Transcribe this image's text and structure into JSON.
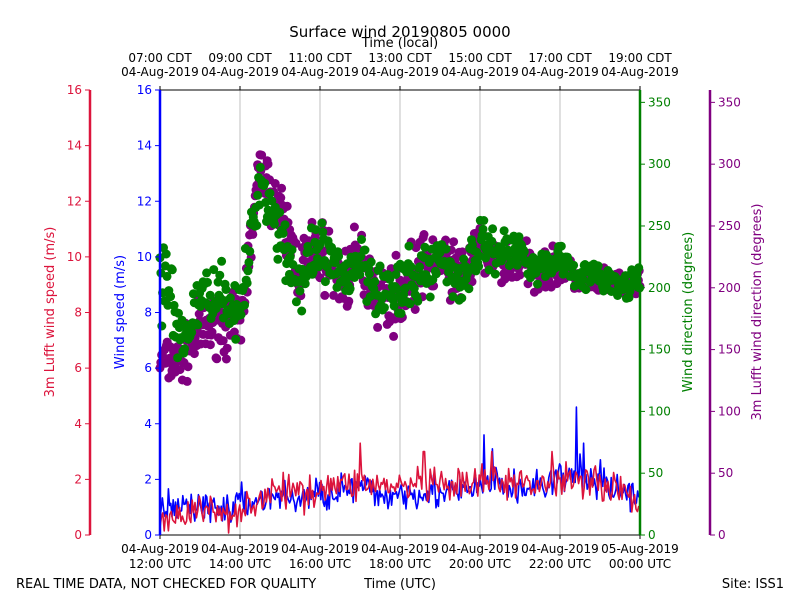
{
  "chart_data": {
    "type": "scatter",
    "title": "Surface wind 20190805 0000",
    "top_xlabel": "Time (local)",
    "xlabel": "Time (UTC)",
    "footer_left": "REAL TIME DATA, NOT CHECKED FOR QUALITY",
    "footer_right": "Site: ISS1",
    "x_range_hours_utc": [
      12.0,
      24.0
    ],
    "grid": "vertical",
    "bottom_ticks": [
      {
        "hour": 12,
        "line1": "04-Aug-2019",
        "line2": "12:00 UTC"
      },
      {
        "hour": 14,
        "line1": "04-Aug-2019",
        "line2": "14:00 UTC"
      },
      {
        "hour": 16,
        "line1": "04-Aug-2019",
        "line2": "16:00 UTC"
      },
      {
        "hour": 18,
        "line1": "04-Aug-2019",
        "line2": "18:00 UTC"
      },
      {
        "hour": 20,
        "line1": "04-Aug-2019",
        "line2": "20:00 UTC"
      },
      {
        "hour": 22,
        "line1": "04-Aug-2019",
        "line2": "22:00 UTC"
      },
      {
        "hour": 24,
        "line1": "05-Aug-2019",
        "line2": "00:00 UTC"
      }
    ],
    "top_ticks": [
      {
        "hour": 12,
        "line1": "07:00 CDT",
        "line2": "04-Aug-2019"
      },
      {
        "hour": 14,
        "line1": "09:00 CDT",
        "line2": "04-Aug-2019"
      },
      {
        "hour": 16,
        "line1": "11:00 CDT",
        "line2": "04-Aug-2019"
      },
      {
        "hour": 18,
        "line1": "13:00 CDT",
        "line2": "04-Aug-2019"
      },
      {
        "hour": 20,
        "line1": "15:00 CDT",
        "line2": "04-Aug-2019"
      },
      {
        "hour": 22,
        "line1": "17:00 CDT",
        "line2": "04-Aug-2019"
      },
      {
        "hour": 24,
        "line1": "19:00 CDT",
        "line2": "04-Aug-2019"
      }
    ],
    "axes": {
      "lufft_speed": {
        "label": "3m Lufft wind speed (m/s)",
        "color": "#dc143c",
        "range": [
          0,
          16
        ],
        "ticks": [
          0,
          2,
          4,
          6,
          8,
          10,
          12,
          14,
          16
        ]
      },
      "speed": {
        "label": "Wind speed (m/s)",
        "color": "#0000ff",
        "range": [
          0,
          16
        ],
        "ticks": [
          0,
          2,
          4,
          6,
          8,
          10,
          12,
          14,
          16
        ]
      },
      "direction": {
        "label": "Wind direction (degrees)",
        "color": "#008000",
        "range": [
          0,
          360
        ],
        "ticks": [
          0,
          50,
          100,
          150,
          200,
          250,
          300,
          350
        ]
      },
      "lufft_direction": {
        "label": "3m Lufft wind direction (degrees)",
        "color": "#800080",
        "range": [
          0,
          360
        ],
        "ticks": [
          0,
          50,
          100,
          150,
          200,
          250,
          300,
          350
        ]
      }
    },
    "series": [
      {
        "name": "Wind speed",
        "axis": "speed",
        "kind": "line",
        "color": "#0000ff",
        "x": [
          12.0,
          12.5,
          13.0,
          13.5,
          14.0,
          14.5,
          15.0,
          15.5,
          16.0,
          16.5,
          17.0,
          17.5,
          18.0,
          18.5,
          19.0,
          19.5,
          20.0,
          20.5,
          21.0,
          21.5,
          22.0,
          22.5,
          23.0,
          23.5,
          24.0
        ],
        "values": [
          0.8,
          1.0,
          1.1,
          0.9,
          1.1,
          1.3,
          1.4,
          1.3,
          1.5,
          1.6,
          1.7,
          1.4,
          1.5,
          1.6,
          1.5,
          1.5,
          1.7,
          1.8,
          1.6,
          1.8,
          2.0,
          2.1,
          1.9,
          1.6,
          1.3
        ],
        "peaks": [
          {
            "x": 22.4,
            "value": 4.6
          },
          {
            "x": 20.1,
            "value": 3.6
          },
          {
            "x": 22.6,
            "value": 3.3
          },
          {
            "x": 20.3,
            "value": 3.1
          }
        ]
      },
      {
        "name": "3m Lufft wind speed",
        "axis": "lufft_speed",
        "kind": "line",
        "color": "#dc143c",
        "x": [
          12.0,
          12.5,
          13.0,
          13.5,
          14.0,
          14.5,
          15.0,
          15.5,
          16.0,
          16.5,
          17.0,
          17.5,
          18.0,
          18.5,
          19.0,
          19.5,
          20.0,
          20.5,
          21.0,
          21.5,
          22.0,
          22.5,
          23.0,
          23.5,
          24.0
        ],
        "values": [
          0.6,
          0.7,
          0.9,
          0.8,
          0.9,
          1.3,
          1.6,
          1.5,
          1.7,
          1.8,
          1.9,
          1.8,
          1.7,
          1.8,
          1.7,
          1.7,
          1.9,
          1.9,
          1.8,
          1.9,
          2.0,
          2.1,
          1.9,
          1.6,
          1.2
        ],
        "peaks": [
          {
            "x": 17.0,
            "value": 3.3
          },
          {
            "x": 18.6,
            "value": 3.0
          },
          {
            "x": 21.8,
            "value": 3.0
          },
          {
            "x": 20.3,
            "value": 3.0
          }
        ]
      },
      {
        "name": "Wind direction",
        "axis": "direction",
        "kind": "scatter",
        "color": "#008000",
        "x": [
          12.0,
          12.5,
          13.0,
          13.5,
          14.0,
          14.5,
          15.0,
          15.5,
          16.0,
          16.5,
          17.0,
          17.5,
          18.0,
          18.5,
          19.0,
          19.5,
          20.0,
          20.5,
          21.0,
          21.5,
          22.0,
          22.5,
          23.0,
          23.5,
          24.0
        ],
        "values": [
          230,
          150,
          190,
          200,
          175,
          290,
          245,
          200,
          230,
          205,
          225,
          200,
          195,
          210,
          225,
          205,
          235,
          230,
          230,
          215,
          225,
          210,
          210,
          200,
          205
        ],
        "spread": [
          90,
          35,
          30,
          30,
          35,
          30,
          40,
          40,
          35,
          35,
          40,
          35,
          35,
          35,
          30,
          30,
          30,
          25,
          25,
          20,
          20,
          15,
          15,
          15,
          15
        ]
      },
      {
        "name": "3m Lufft wind direction",
        "axis": "lufft_direction",
        "kind": "scatter",
        "color": "#800080",
        "x": [
          12.0,
          12.5,
          13.0,
          13.5,
          14.0,
          14.5,
          15.0,
          15.5,
          16.0,
          16.5,
          17.0,
          17.5,
          18.0,
          18.5,
          19.0,
          19.5,
          20.0,
          20.5,
          21.0,
          21.5,
          22.0,
          22.5,
          23.0,
          23.5,
          24.0
        ],
        "values": [
          140,
          140,
          165,
          170,
          165,
          300,
          260,
          215,
          230,
          205,
          220,
          195,
          195,
          215,
          225,
          210,
          230,
          220,
          220,
          215,
          215,
          205,
          205,
          200,
          205
        ],
        "spread": [
          25,
          30,
          35,
          30,
          40,
          25,
          40,
          45,
          40,
          40,
          45,
          40,
          40,
          40,
          35,
          35,
          30,
          30,
          25,
          25,
          20,
          15,
          15,
          15,
          15
        ]
      }
    ]
  }
}
